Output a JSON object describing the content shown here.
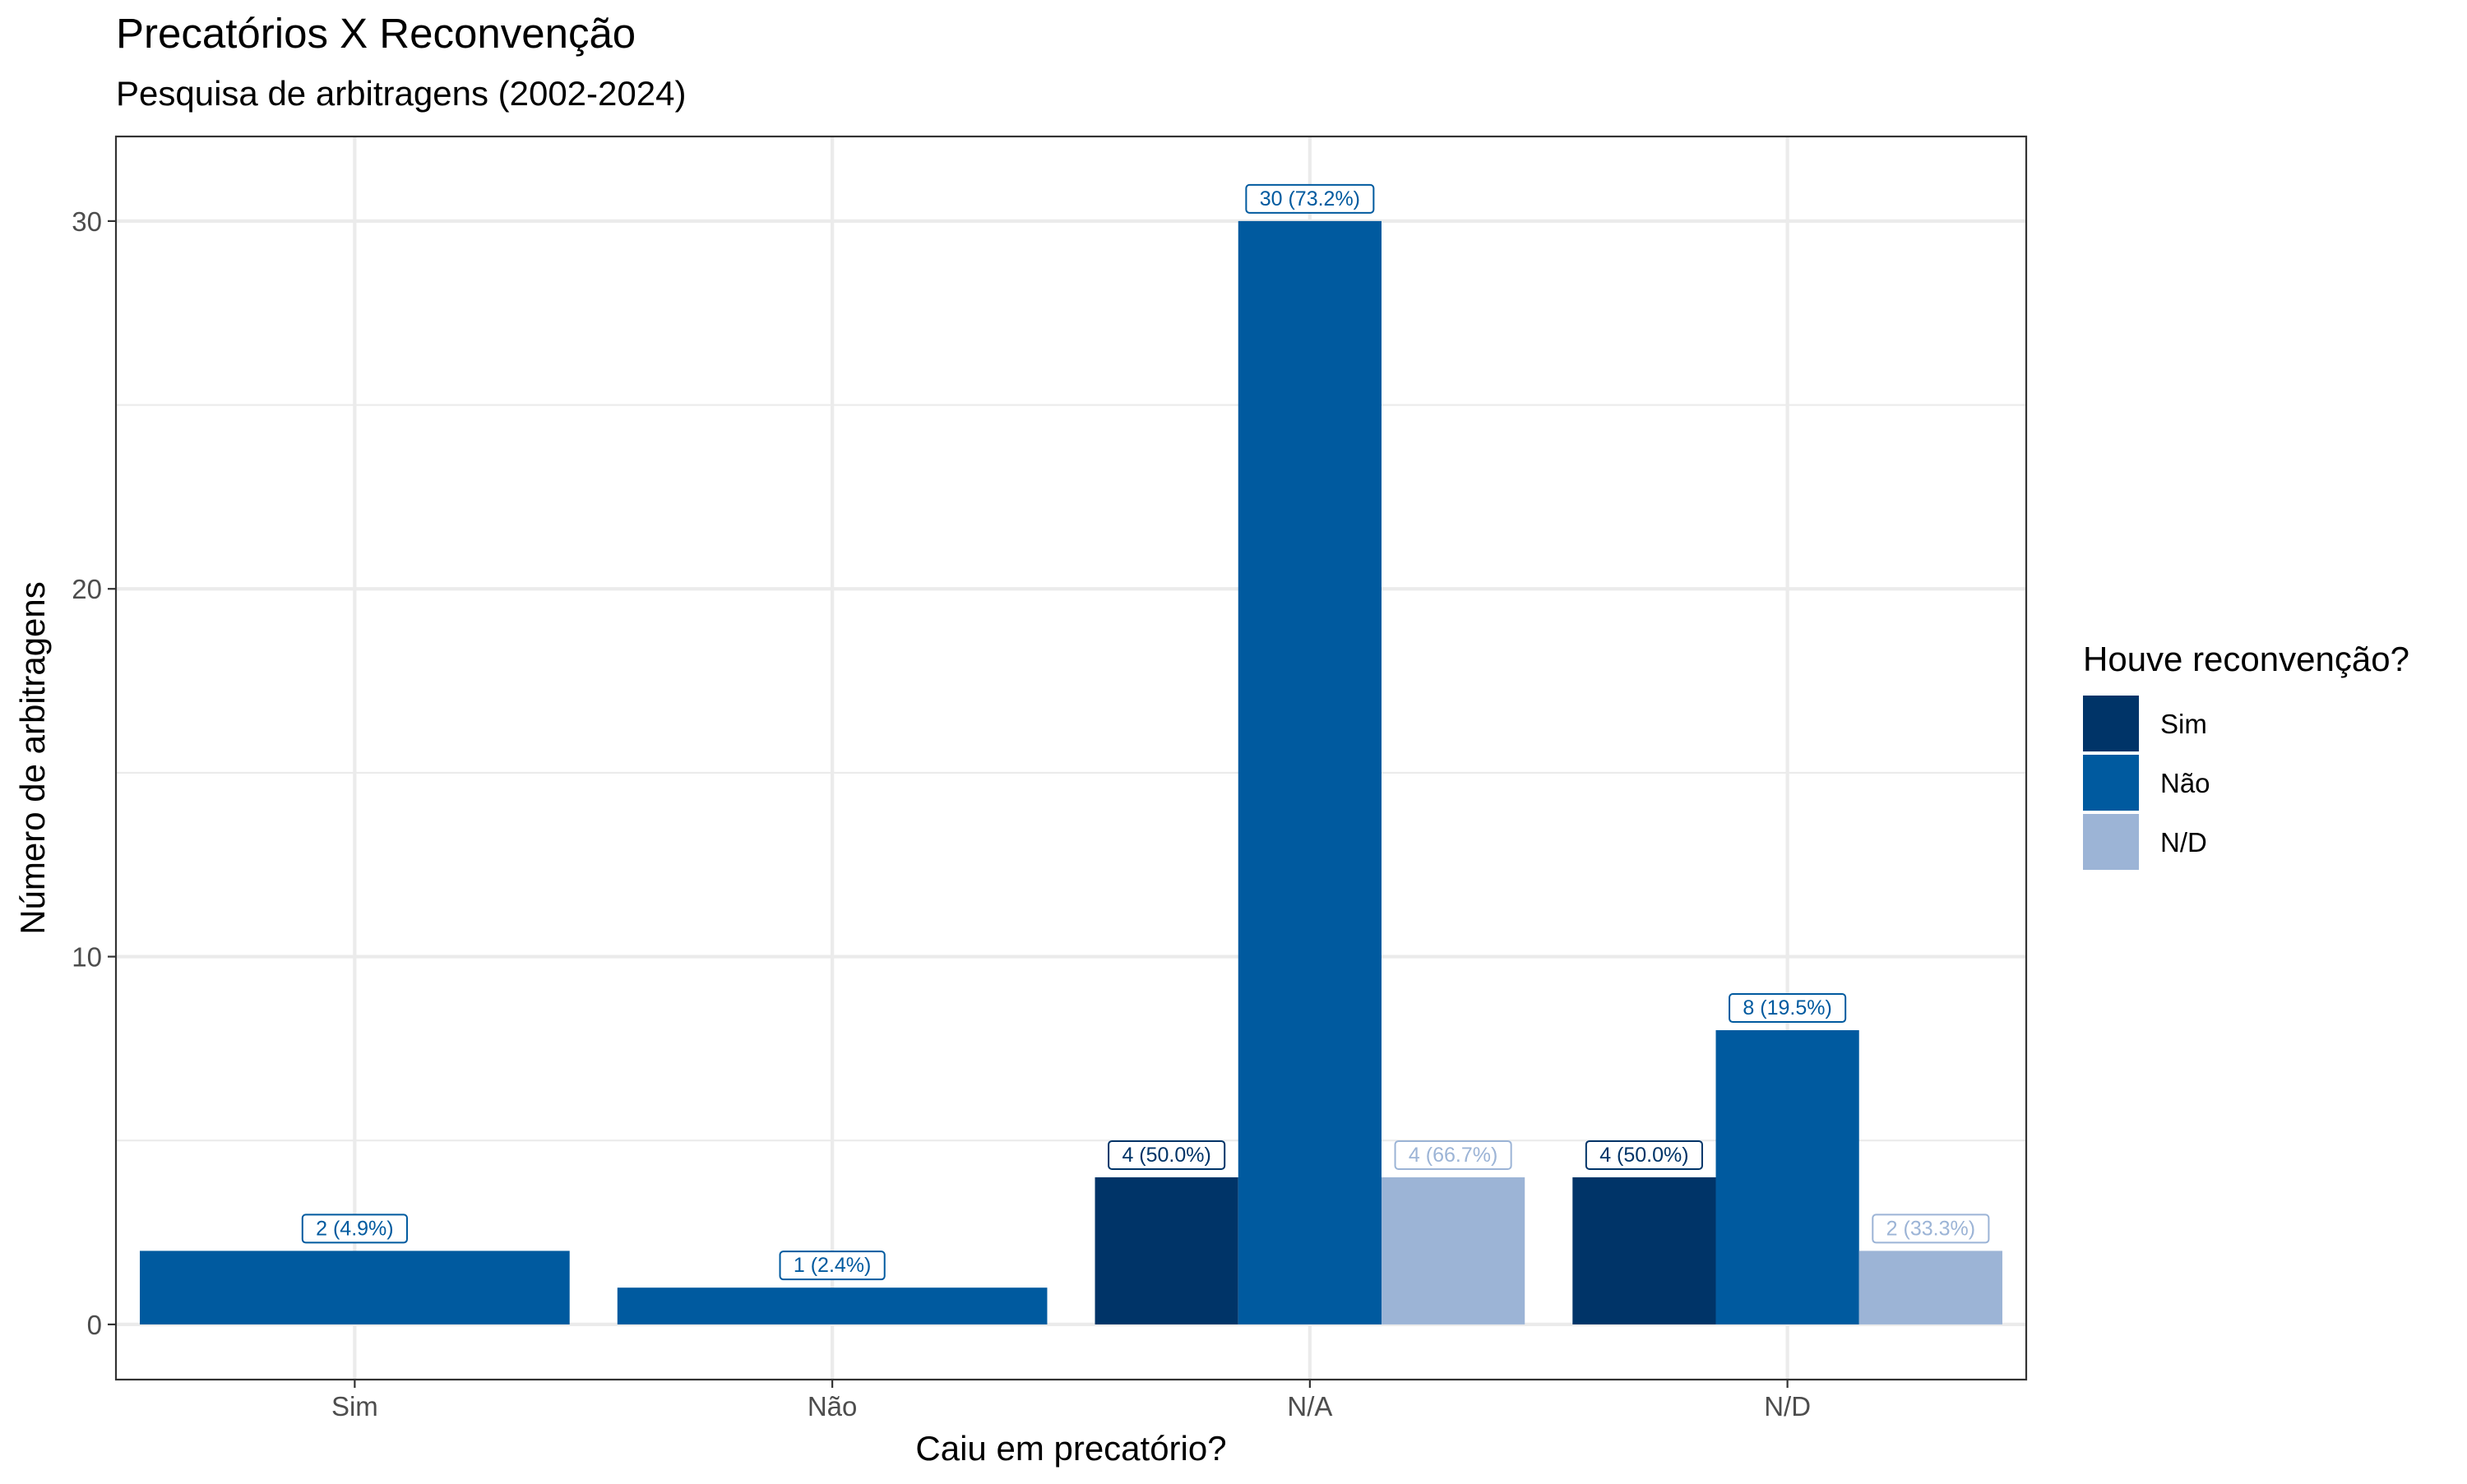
{
  "chart_data": {
    "type": "bar",
    "title": "Precatórios X Reconvenção",
    "subtitle": "Pesquisa de arbitragens (2002-2024)",
    "xlabel": "Caiu em precatório?",
    "ylabel": "Número de arbitragens",
    "categories": [
      "Sim",
      "Não",
      "N/A",
      "N/D"
    ],
    "ylim": [
      -1.5,
      32.3
    ],
    "yticks": [
      0,
      10,
      20,
      30
    ],
    "grid": true,
    "legend": {
      "title": "Houve reconvenção?",
      "position": "right"
    },
    "series": [
      {
        "name": "Sim",
        "color": "#003468",
        "values": [
          null,
          null,
          4,
          4
        ],
        "labels": [
          null,
          null,
          "4 (50.0%)",
          "4 (50.0%)"
        ]
      },
      {
        "name": "Não",
        "color": "#005a9f",
        "values": [
          2,
          1,
          30,
          8
        ],
        "labels": [
          "2 (4.9%)",
          "1 (2.4%)",
          "30 (73.2%)",
          "8 (19.5%)"
        ]
      },
      {
        "name": "N/D",
        "color": "#9cb4d6",
        "values": [
          null,
          null,
          4,
          2
        ],
        "labels": [
          null,
          null,
          "4 (66.7%)",
          "2 (33.3%)"
        ]
      }
    ]
  }
}
